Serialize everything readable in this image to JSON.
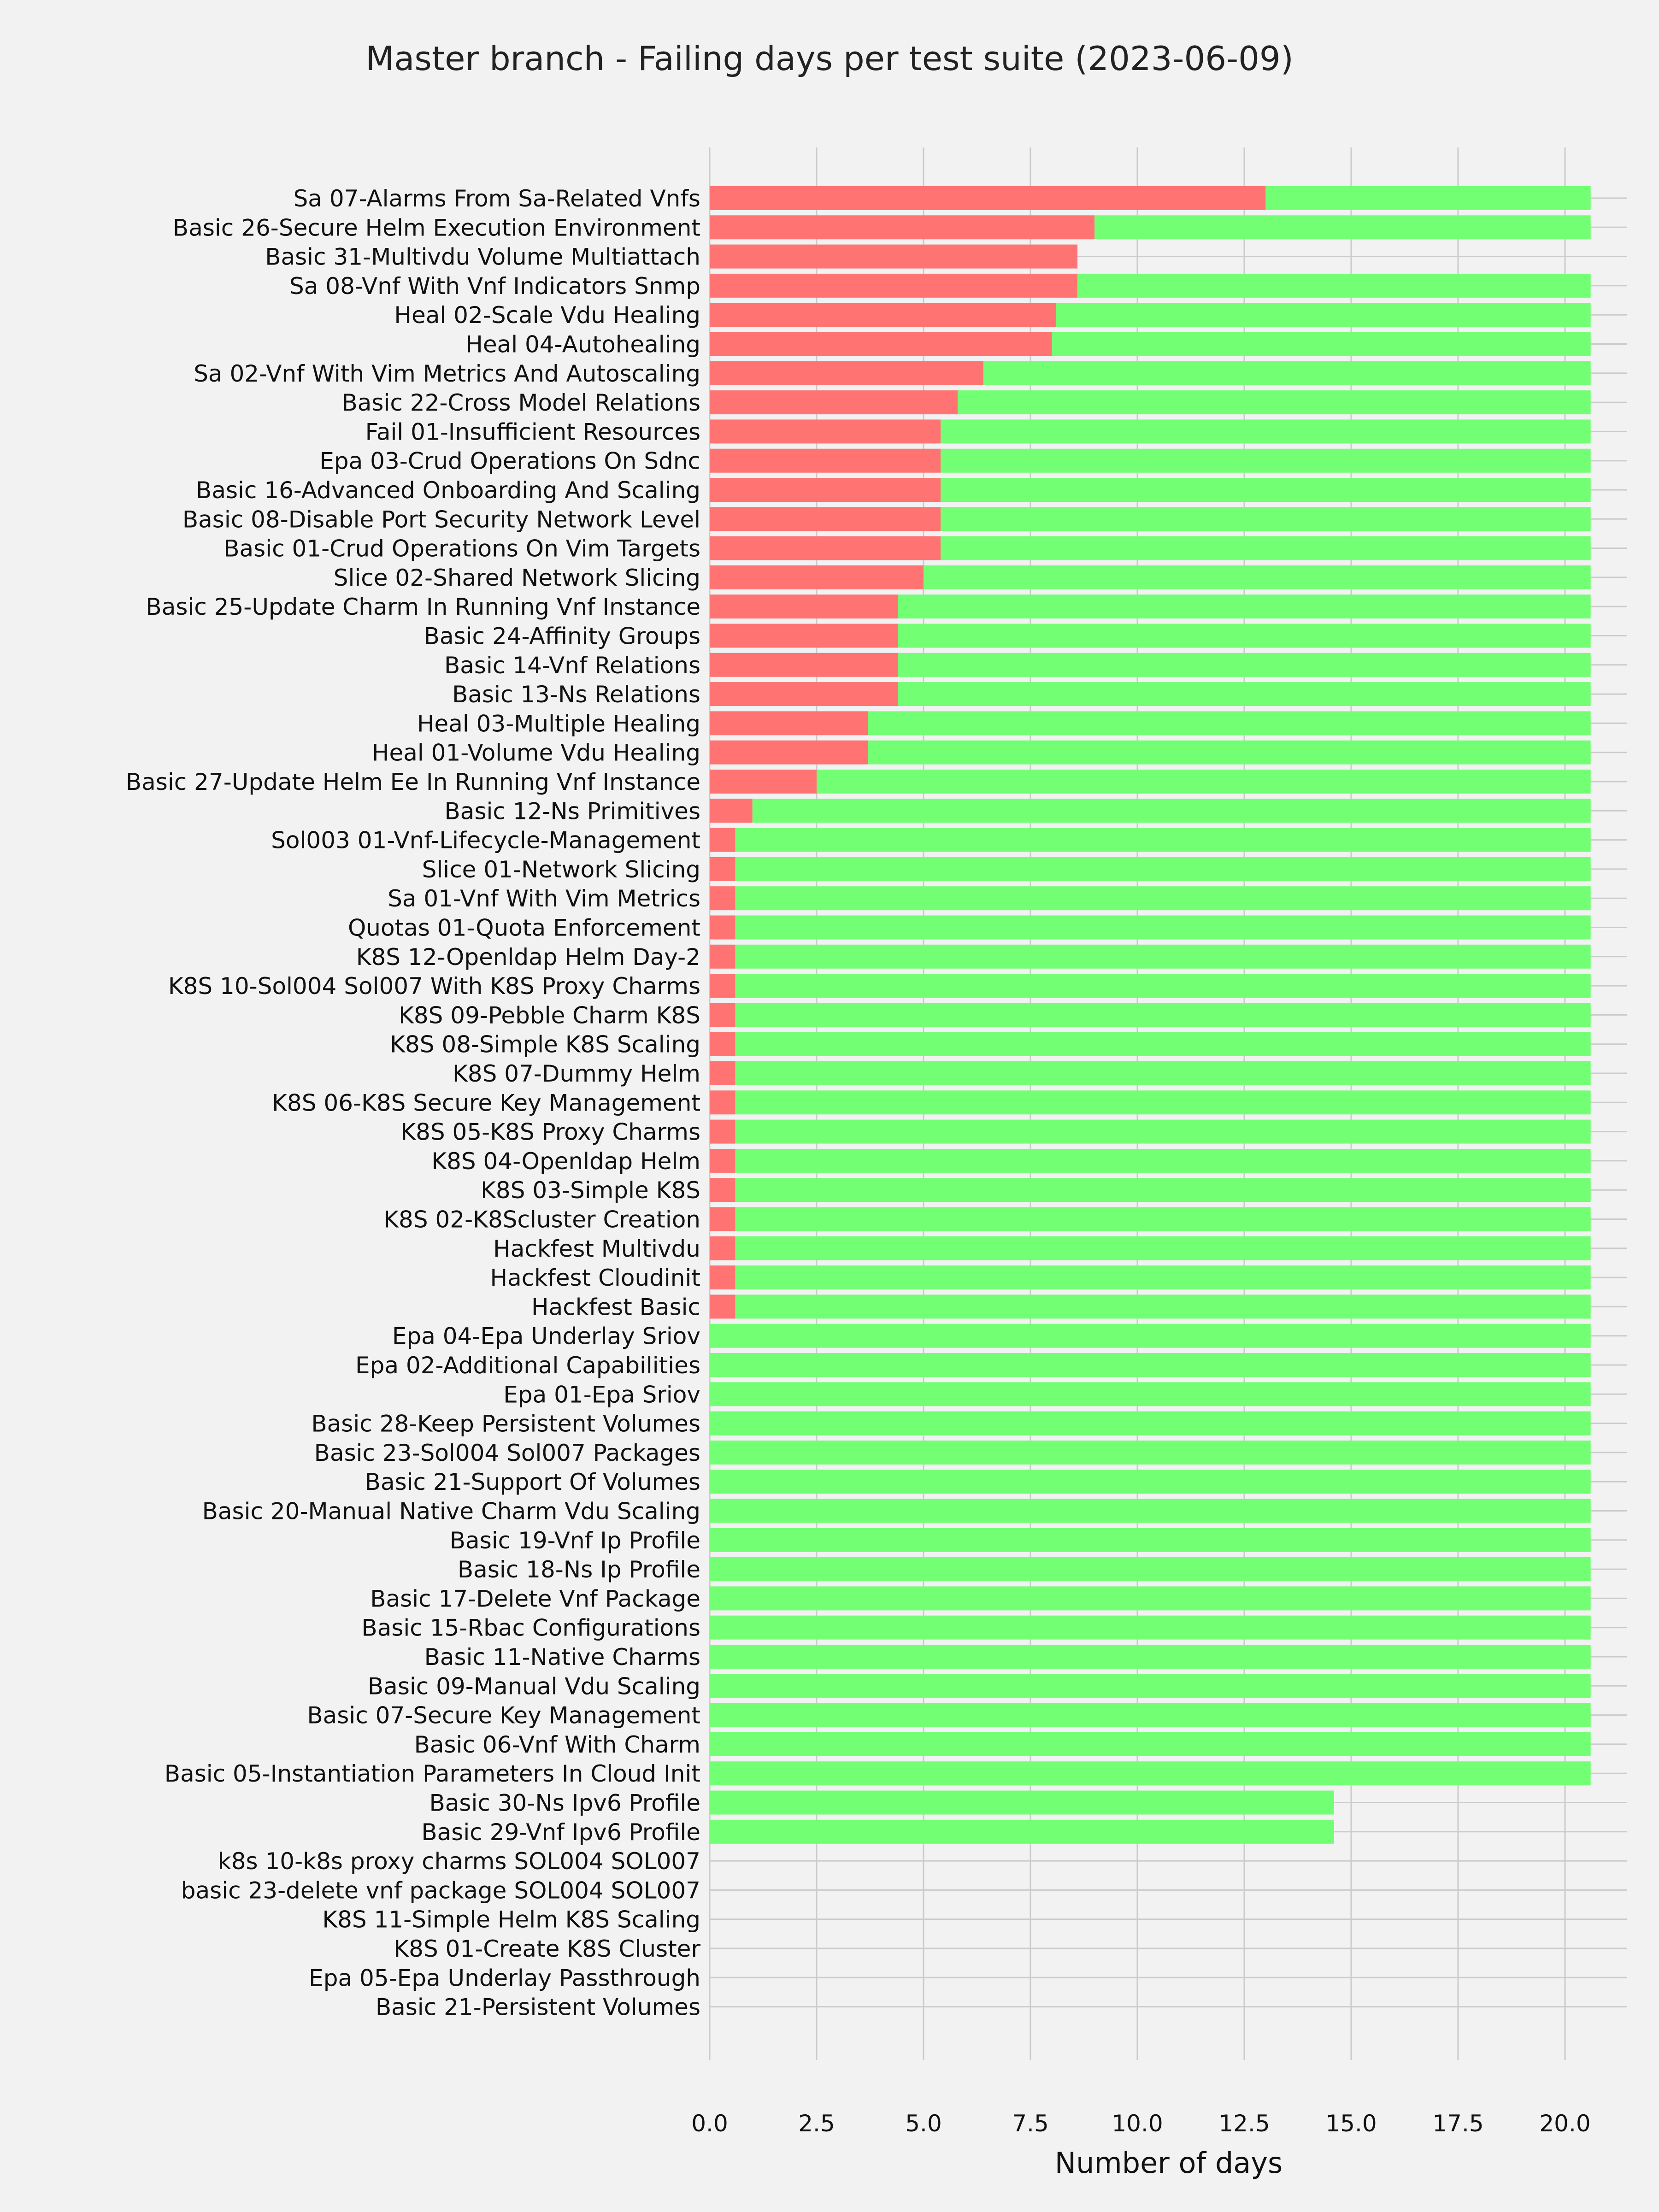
{
  "chart_data": {
    "type": "bar",
    "orientation": "horizontal",
    "stacked": true,
    "title": "Master branch - Failing days per test suite (2023-06-09)",
    "xlabel": "Number of days",
    "ylabel": "",
    "xlim": [
      0,
      21.5
    ],
    "xticks": [
      0.0,
      2.5,
      5.0,
      7.5,
      10.0,
      12.5,
      15.0,
      17.5,
      20.0
    ],
    "xtick_labels": [
      "0.0",
      "2.5",
      "5.0",
      "7.5",
      "10.0",
      "12.5",
      "15.0",
      "17.5",
      "20.0"
    ],
    "grid": true,
    "legend": "none",
    "colors": {
      "fail": "#ff7373",
      "pass": "#73ff73",
      "background": "#f2f2f2",
      "grid": "#cbcbcb"
    },
    "categories": [
      "Sa 07-Alarms From Sa-Related Vnfs",
      "Basic 26-Secure Helm Execution Environment",
      "Basic 31-Multivdu Volume Multiattach",
      "Sa 08-Vnf With Vnf Indicators Snmp",
      "Heal 02-Scale Vdu Healing",
      "Heal 04-Autohealing",
      "Sa 02-Vnf With Vim Metrics And Autoscaling",
      "Basic 22-Cross Model Relations",
      "Fail 01-Insufficient Resources",
      "Epa 03-Crud Operations On Sdnc",
      "Basic 16-Advanced Onboarding And Scaling",
      "Basic 08-Disable Port Security Network Level",
      "Basic 01-Crud Operations On Vim Targets",
      "Slice 02-Shared Network Slicing",
      "Basic 25-Update Charm In Running Vnf Instance",
      "Basic 24-Affinity Groups",
      "Basic 14-Vnf Relations",
      "Basic 13-Ns Relations",
      "Heal 03-Multiple Healing",
      "Heal 01-Volume Vdu Healing",
      "Basic 27-Update Helm Ee In Running Vnf Instance",
      "Basic 12-Ns Primitives",
      "Sol003 01-Vnf-Lifecycle-Management",
      "Slice 01-Network Slicing",
      "Sa 01-Vnf With Vim Metrics",
      "Quotas 01-Quota Enforcement",
      "K8S 12-Openldap Helm Day-2",
      "K8S 10-Sol004 Sol007 With K8S Proxy Charms",
      "K8S 09-Pebble Charm K8S",
      "K8S 08-Simple K8S Scaling",
      "K8S 07-Dummy Helm",
      "K8S 06-K8S Secure Key Management",
      "K8S 05-K8S Proxy Charms",
      "K8S 04-Openldap Helm",
      "K8S 03-Simple K8S",
      "K8S 02-K8Scluster Creation",
      "Hackfest Multivdu",
      "Hackfest Cloudinit",
      "Hackfest Basic",
      "Epa 04-Epa Underlay Sriov",
      "Epa 02-Additional Capabilities",
      "Epa 01-Epa Sriov",
      "Basic 28-Keep Persistent Volumes",
      "Basic 23-Sol004 Sol007 Packages",
      "Basic 21-Support Of Volumes",
      "Basic 20-Manual Native Charm Vdu Scaling",
      "Basic 19-Vnf Ip Profile",
      "Basic 18-Ns Ip Profile",
      "Basic 17-Delete Vnf Package",
      "Basic 15-Rbac Configurations",
      "Basic 11-Native Charms",
      "Basic 09-Manual Vdu Scaling",
      "Basic 07-Secure Key Management",
      "Basic 06-Vnf With Charm",
      "Basic 05-Instantiation Parameters In Cloud Init",
      "Basic 30-Ns Ipv6 Profile",
      "Basic 29-Vnf Ipv6 Profile",
      "k8s 10-k8s proxy charms SOL004 SOL007",
      "basic 23-delete vnf package SOL004 SOL007",
      "K8S 11-Simple Helm K8S Scaling",
      "K8S 01-Create K8S Cluster",
      "Epa 05-Epa Underlay Passthrough",
      "Basic 21-Persistent Volumes"
    ],
    "series": [
      {
        "key": "fail",
        "values": [
          13.0,
          9.0,
          8.6,
          8.6,
          8.1,
          8.0,
          6.4,
          5.8,
          5.4,
          5.4,
          5.4,
          5.4,
          5.4,
          5.0,
          4.4,
          4.4,
          4.4,
          4.4,
          3.7,
          3.7,
          2.5,
          1.0,
          0.6,
          0.6,
          0.6,
          0.6,
          0.6,
          0.6,
          0.6,
          0.6,
          0.6,
          0.6,
          0.6,
          0.6,
          0.6,
          0.6,
          0.6,
          0.6,
          0.6,
          0,
          0,
          0,
          0,
          0,
          0,
          0,
          0,
          0,
          0,
          0,
          0,
          0,
          0,
          0,
          0,
          0,
          0,
          0,
          0,
          0,
          0,
          0,
          0
        ]
      },
      {
        "key": "pass",
        "values": [
          7.6,
          11.6,
          0,
          12.0,
          12.5,
          12.6,
          14.2,
          14.8,
          15.2,
          15.2,
          15.2,
          15.2,
          15.2,
          15.6,
          16.2,
          16.2,
          16.2,
          16.2,
          16.9,
          16.9,
          18.1,
          19.6,
          20.0,
          20.0,
          20.0,
          20.0,
          20.0,
          20.0,
          20.0,
          20.0,
          20.0,
          20.0,
          20.0,
          20.0,
          20.0,
          20.0,
          20.0,
          20.0,
          20.0,
          20.6,
          20.6,
          20.6,
          20.6,
          20.6,
          20.6,
          20.6,
          20.6,
          20.6,
          20.6,
          20.6,
          20.6,
          20.6,
          20.6,
          20.6,
          20.6,
          14.6,
          14.6,
          0,
          0,
          0,
          0,
          0,
          0
        ]
      }
    ]
  }
}
